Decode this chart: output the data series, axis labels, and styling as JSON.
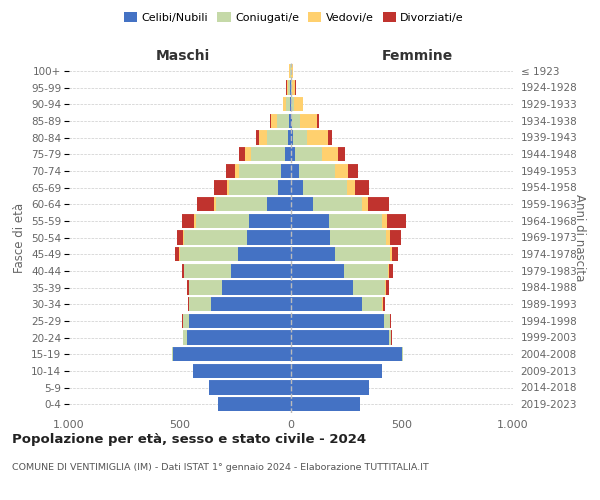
{
  "age_groups": [
    "0-4",
    "5-9",
    "10-14",
    "15-19",
    "20-24",
    "25-29",
    "30-34",
    "35-39",
    "40-44",
    "45-49",
    "50-54",
    "55-59",
    "60-64",
    "65-69",
    "70-74",
    "75-79",
    "80-84",
    "85-89",
    "90-94",
    "95-99",
    "100+"
  ],
  "birth_years": [
    "2019-2023",
    "2014-2018",
    "2009-2013",
    "2004-2008",
    "1999-2003",
    "1994-1998",
    "1989-1993",
    "1984-1988",
    "1979-1983",
    "1974-1978",
    "1969-1973",
    "1964-1968",
    "1959-1963",
    "1954-1958",
    "1949-1953",
    "1944-1948",
    "1939-1943",
    "1934-1938",
    "1929-1933",
    "1924-1928",
    "≤ 1923"
  ],
  "maschi": {
    "celibi": [
      330,
      370,
      440,
      530,
      470,
      460,
      360,
      310,
      270,
      240,
      200,
      190,
      110,
      60,
      45,
      25,
      12,
      8,
      4,
      4,
      2
    ],
    "coniugati": [
      0,
      0,
      0,
      5,
      15,
      25,
      100,
      150,
      210,
      260,
      280,
      240,
      230,
      220,
      190,
      155,
      95,
      55,
      18,
      9,
      2
    ],
    "vedovi": [
      0,
      0,
      0,
      0,
      0,
      0,
      0,
      0,
      0,
      5,
      5,
      5,
      8,
      10,
      18,
      28,
      38,
      28,
      14,
      7,
      3
    ],
    "divorziati": [
      0,
      0,
      0,
      0,
      0,
      5,
      5,
      8,
      12,
      18,
      28,
      55,
      75,
      55,
      38,
      25,
      12,
      4,
      2,
      2,
      0
    ]
  },
  "femmine": {
    "nubili": [
      310,
      350,
      410,
      500,
      440,
      420,
      320,
      280,
      240,
      200,
      175,
      170,
      100,
      55,
      35,
      18,
      8,
      6,
      2,
      2,
      1
    ],
    "coniugate": [
      0,
      0,
      0,
      5,
      12,
      25,
      90,
      145,
      195,
      245,
      255,
      240,
      220,
      195,
      165,
      120,
      62,
      35,
      12,
      4,
      1
    ],
    "vedove": [
      0,
      0,
      0,
      0,
      0,
      0,
      4,
      4,
      8,
      8,
      18,
      22,
      28,
      38,
      55,
      75,
      95,
      75,
      38,
      14,
      5
    ],
    "divorziate": [
      0,
      0,
      0,
      0,
      4,
      4,
      8,
      12,
      18,
      28,
      48,
      85,
      95,
      65,
      45,
      32,
      18,
      8,
      2,
      2,
      0
    ]
  },
  "colors": {
    "celibi": "#4472c4",
    "coniugati": "#c5d9a8",
    "vedovi": "#ffd06e",
    "divorziati": "#c0332e"
  },
  "xlim": 1000,
  "title": "Popolazione per età, sesso e stato civile - 2024",
  "subtitle": "COMUNE DI VENTIMIGLIA (IM) - Dati ISTAT 1° gennaio 2024 - Elaborazione TUTTITALIA.IT",
  "ylabel_left": "Fasce di età",
  "ylabel_right": "Anni di nascita",
  "header_left": "Maschi",
  "header_right": "Femmine"
}
